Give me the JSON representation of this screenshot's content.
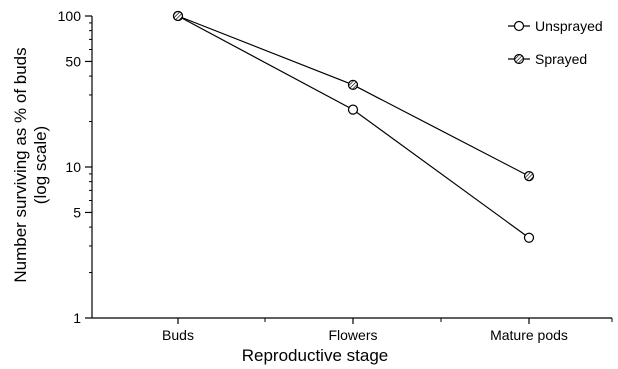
{
  "chart_data": {
    "type": "line",
    "categories": [
      "Buds",
      "Flowers",
      "Mature pods"
    ],
    "series": [
      {
        "name": "Unsprayed",
        "values": [
          100,
          24,
          3.4
        ],
        "marker": "open-circle"
      },
      {
        "name": "Sprayed",
        "values": [
          100,
          35,
          8.7
        ],
        "marker": "hatched-circle"
      }
    ],
    "xlabel": "Reproductive stage",
    "ylabel_line1": "Number surviving as % of buds",
    "ylabel_line2": "(log scale)",
    "yscale": "log",
    "ylim": [
      1,
      100
    ],
    "yticks": [
      {
        "value": 1,
        "label": "1"
      },
      {
        "value": 5,
        "label": "5"
      },
      {
        "value": 10,
        "label": "10"
      },
      {
        "value": 50,
        "label": "50"
      },
      {
        "value": 100,
        "label": "100"
      }
    ],
    "grid": false,
    "legend_position": "top-right"
  }
}
